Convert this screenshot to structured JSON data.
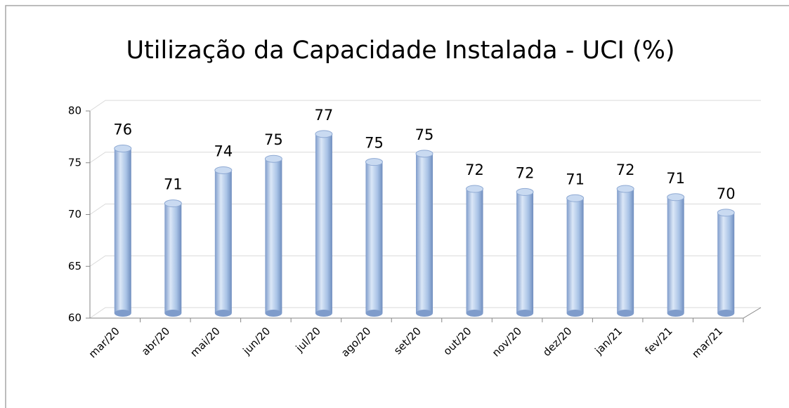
{
  "chart_data": {
    "type": "bar3d",
    "title": "Utilização da Capacidade Instalada - UCI (%)",
    "categories": [
      "mar/20",
      "abr/20",
      "mai/20",
      "jun/20",
      "jul/20",
      "ago/20",
      "set/20",
      "out/20",
      "nov/20",
      "dez/20",
      "jan/21",
      "fev/21",
      "mar/21"
    ],
    "values": [
      75.9,
      70.6,
      73.8,
      74.9,
      77.3,
      74.6,
      75.4,
      72.0,
      71.7,
      71.1,
      72.0,
      71.2,
      69.7
    ],
    "value_labels": [
      "76",
      "71",
      "74",
      "75",
      "77",
      "75",
      "75",
      "72",
      "72",
      "71",
      "72",
      "71",
      "70"
    ],
    "color": "#a9c3e6",
    "ylim": [
      60,
      80
    ],
    "yticks": [
      60,
      65,
      70,
      75,
      80
    ],
    "grid": true
  }
}
